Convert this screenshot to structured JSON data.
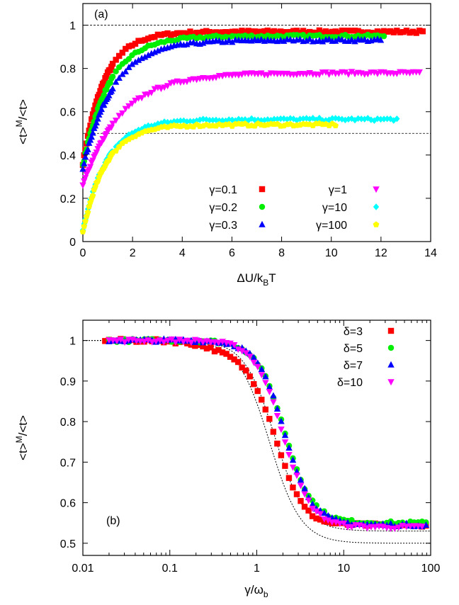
{
  "chart_data": [
    {
      "type": "scatter",
      "panel_label": "(a)",
      "xlabel": "ΔU/k_BT",
      "ylabel": "<t>^M/<t>",
      "xlim": [
        0,
        14
      ],
      "ylim": [
        0,
        1.1
      ],
      "xticks": [
        0,
        2,
        4,
        6,
        8,
        10,
        12,
        14
      ],
      "yticks": [
        0,
        0.2,
        0.4,
        0.6,
        0.8,
        1
      ],
      "x_scale": "linear",
      "legend_position": "bottom-right",
      "reference_lines": [
        1,
        0.5
      ],
      "series": [
        {
          "name": "γ=0.1",
          "color": "#ff0000",
          "marker": "square",
          "xmax": 13.8,
          "plateau": 0.97,
          "start": 0.36,
          "rate": 1.15
        },
        {
          "name": "γ=0.2",
          "color": "#00ee00",
          "marker": "circle",
          "xmax": 12.2,
          "plateau": 0.95,
          "start": 0.35,
          "rate": 0.95
        },
        {
          "name": "γ=0.3",
          "color": "#0000ff",
          "marker": "triangle-up",
          "xmax": 12.0,
          "plateau": 0.93,
          "start": 0.34,
          "rate": 0.82
        },
        {
          "name": "γ=1",
          "color": "#ff00ff",
          "marker": "triangle-down",
          "xmax": 13.6,
          "plateau": 0.78,
          "start": 0.26,
          "rate": 0.65
        },
        {
          "name": "γ=10",
          "color": "#00ffff",
          "marker": "diamond",
          "xmax": 12.7,
          "plateau": 0.565,
          "start": 0.05,
          "rate": 1.05
        },
        {
          "name": "γ=100",
          "color": "#ffff00",
          "marker": "pentagon",
          "xmax": 10.2,
          "plateau": 0.54,
          "start": 0.04,
          "rate": 1.1
        }
      ]
    },
    {
      "type": "scatter",
      "panel_label": "(b)",
      "xlabel": "γ/ω_b",
      "ylabel": "<t>^M/<t>",
      "xlim": [
        0.01,
        100
      ],
      "ylim": [
        0.47,
        1.05
      ],
      "xticks": [
        0.01,
        0.1,
        1,
        10,
        100
      ],
      "yticks": [
        0.5,
        0.6,
        0.7,
        0.8,
        0.9,
        1
      ],
      "x_scale": "log",
      "legend_position": "top-right",
      "series": [
        {
          "name": "δ=3",
          "color": "#ff0000",
          "marker": "square",
          "xmin": 0.018,
          "xmax": 90,
          "plateau_low": 0.545,
          "midpoint": 1.75,
          "width": 2.7,
          "dip": 0.035
        },
        {
          "name": "δ=5",
          "color": "#00ee00",
          "marker": "circle",
          "xmin": 0.02,
          "xmax": 90,
          "plateau_low": 0.55,
          "midpoint": 2.1,
          "width": 2.7,
          "dip": 0.0
        },
        {
          "name": "δ=7",
          "color": "#0000ff",
          "marker": "triangle-up",
          "xmin": 0.02,
          "xmax": 90,
          "plateau_low": 0.545,
          "midpoint": 2.1,
          "width": 2.7,
          "dip": 0.0
        },
        {
          "name": "δ=10",
          "color": "#ff00ff",
          "marker": "triangle-down",
          "xmin": 0.02,
          "xmax": 80,
          "plateau_low": 0.54,
          "midpoint": 2.0,
          "width": 2.7,
          "dip": 0.0
        }
      ],
      "reference_curves": [
        {
          "plateau_low": 0.5,
          "midpoint": 1.4,
          "width": 2.4
        },
        {
          "plateau_low": 0.53,
          "midpoint": 1.6,
          "width": 2.5
        }
      ]
    }
  ]
}
